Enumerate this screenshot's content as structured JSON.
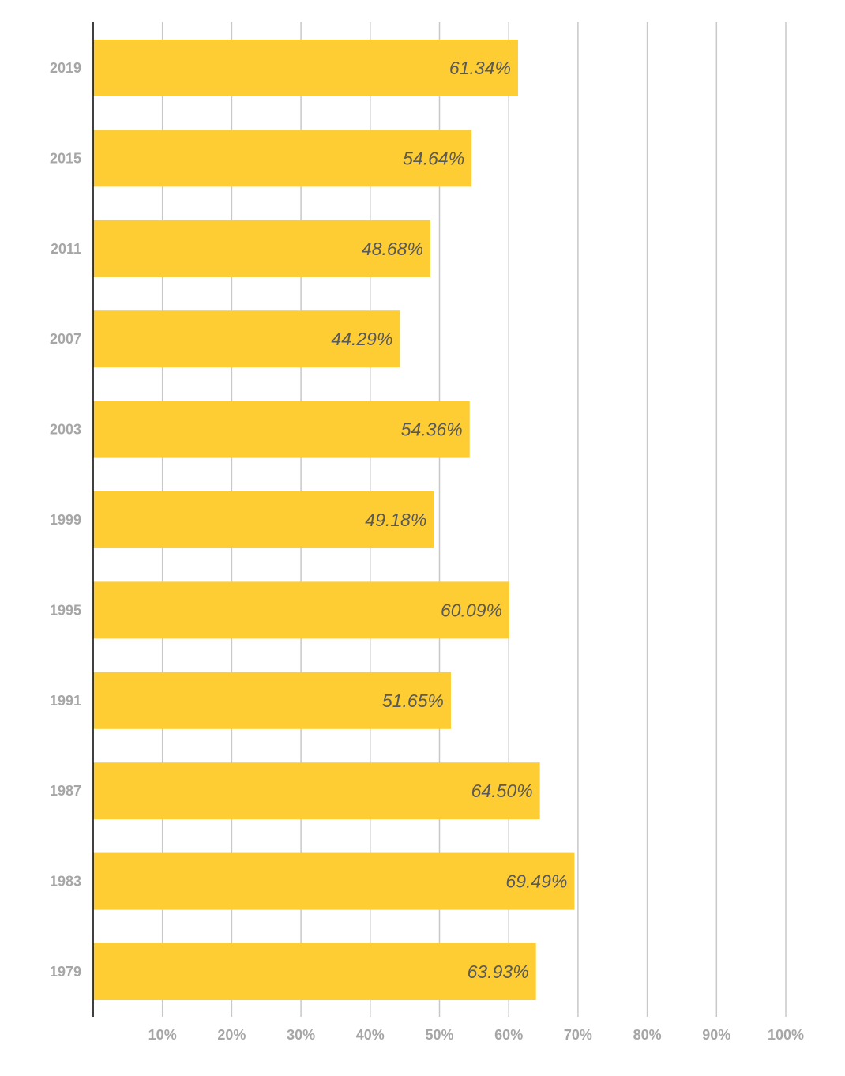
{
  "chart_data": {
    "type": "bar",
    "orientation": "horizontal",
    "categories": [
      "2019",
      "2015",
      "2011",
      "2007",
      "2003",
      "1999",
      "1995",
      "1991",
      "1987",
      "1983",
      "1979"
    ],
    "values": [
      61.34,
      54.64,
      48.68,
      44.29,
      54.36,
      49.18,
      60.09,
      51.65,
      64.5,
      69.49,
      63.93
    ],
    "data_labels": [
      "61.34%",
      "54.64%",
      "48.68%",
      "44.29%",
      "54.36%",
      "49.18%",
      "60.09%",
      "51.65%",
      "64.50%",
      "69.49%",
      "63.93%"
    ],
    "xticks": [
      10,
      20,
      30,
      40,
      50,
      60,
      70,
      80,
      90,
      100
    ],
    "xtick_labels": [
      "10%",
      "20%",
      "30%",
      "40%",
      "50%",
      "60%",
      "70%",
      "80%",
      "90%",
      "100%"
    ],
    "xlim": [
      0,
      100
    ],
    "grid": "vertical",
    "legend": "none",
    "title": "",
    "xlabel": "",
    "ylabel": "",
    "colors": {
      "bar": "#fecd33",
      "grid": "#c8c8c8",
      "axis": "#000000",
      "tick_text": "#a6a6a6",
      "data_label_text": "#595959"
    }
  }
}
